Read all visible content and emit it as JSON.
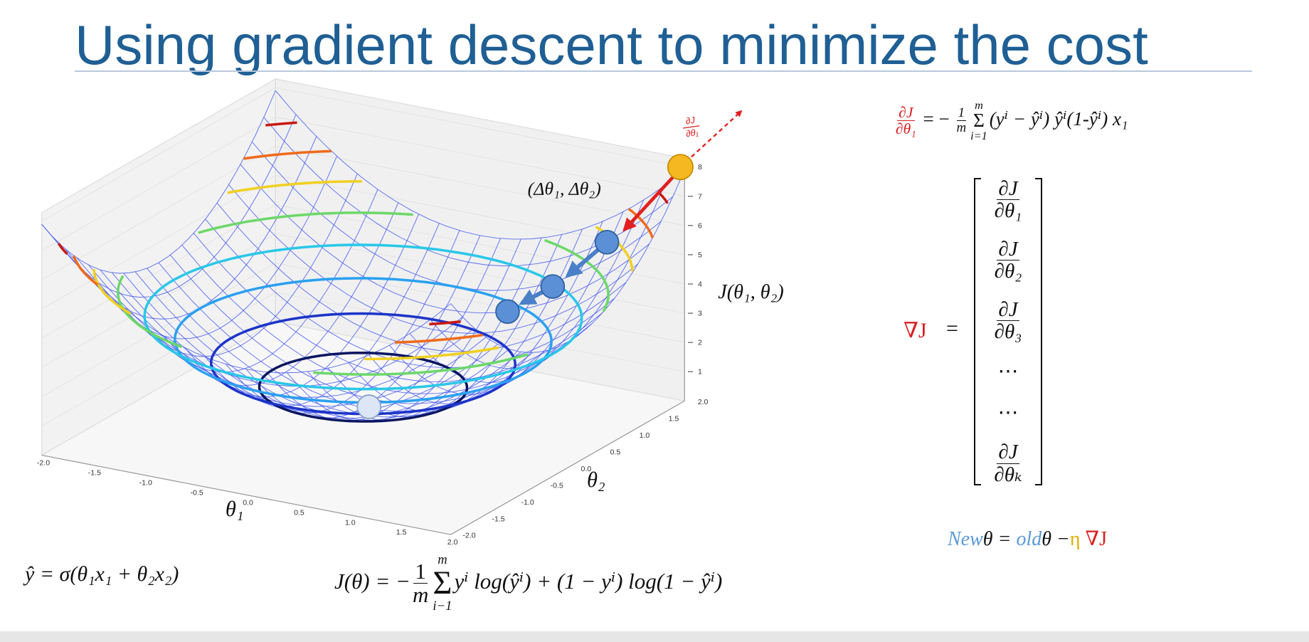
{
  "title": "Using gradient descent to minimize the cost",
  "plot": {
    "theta1_ticks": [
      "-2.0",
      "-1.5",
      "-1.0",
      "-0.5",
      "0.0",
      "0.5",
      "1.0",
      "1.5",
      "2.0"
    ],
    "theta2_ticks": [
      "-2.0",
      "-1.5",
      "-1.0",
      "-0.5",
      "0.0",
      "0.5",
      "1.0",
      "1.5",
      "2.0"
    ],
    "j_ticks": [
      "1",
      "2",
      "3",
      "4",
      "5",
      "6",
      "7",
      "8"
    ],
    "theta1_label": "θ₁",
    "theta2_label": "θ₂",
    "j_label": "J(θ₁, θ₂)",
    "step_label": "(Δθ₁, Δθ₂)",
    "grad_num": "∂J",
    "grad_den": "∂θ₁"
  },
  "gradient": {
    "lhs_num": "∂J",
    "lhs_den": "∂θ₁",
    "eq": "= −",
    "coef_num": "1",
    "coef_den": "m",
    "sum_sup": "m",
    "sum": "Σ",
    "sum_sub": "i=1",
    "rhs": "(yⁱ − ŷⁱ) ŷⁱ(1-ŷⁱ) x₁"
  },
  "vector": {
    "lhs": "∇J",
    "eq": "=",
    "entries": [
      [
        "∂J",
        "∂θ₁"
      ],
      [
        "∂J",
        "∂θ₂"
      ],
      [
        "∂J",
        "∂θ₃"
      ],
      [
        "⋯"
      ],
      [
        "⋯"
      ],
      [
        "∂J",
        "∂θₖ"
      ]
    ]
  },
  "update": {
    "new": "New",
    "theta_a": "θ =",
    "old": "old",
    "theta_b": "θ −",
    "eta": "η",
    "grad": "∇J"
  },
  "hypothesis": "ŷ = σ(θ₁x₁ + θ₂x₂)",
  "cost": {
    "lhs": "J(θ)  = −",
    "coef_num": "1",
    "coef_den": "m",
    "sum_sup": "m",
    "sum": "Σ",
    "sum_sub": "i−1",
    "rhs": "yⁱ log(ŷⁱ) + (1 − yⁱ) log(1 − ŷⁱ)"
  }
}
